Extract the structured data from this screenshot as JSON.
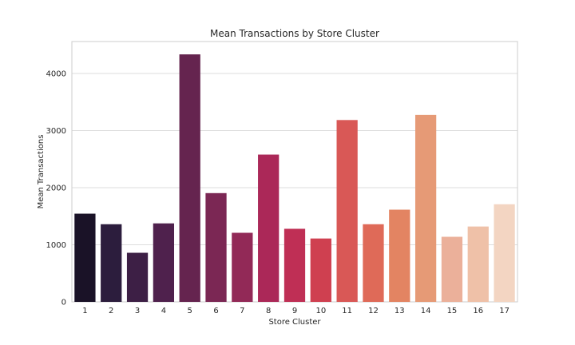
{
  "chart_data": {
    "type": "bar",
    "title": "Mean Transactions by Store Cluster",
    "xlabel": "Store Cluster",
    "ylabel": "Mean Transactions",
    "categories": [
      "1",
      "2",
      "3",
      "4",
      "5",
      "6",
      "7",
      "8",
      "9",
      "10",
      "11",
      "12",
      "13",
      "14",
      "15",
      "16",
      "17"
    ],
    "values": [
      1545,
      1360,
      860,
      1375,
      4335,
      1905,
      1210,
      2580,
      1280,
      1110,
      3185,
      1360,
      1615,
      3275,
      1140,
      1320,
      1710
    ],
    "colors": [
      "#1a1227",
      "#2c1d3d",
      "#3d1f45",
      "#4f214d",
      "#65244f",
      "#7b2754",
      "#922957",
      "#ab2858",
      "#bf2f55",
      "#cf4050",
      "#d95856",
      "#df6a58",
      "#e38462",
      "#e69a76",
      "#ebb09a",
      "#efc1a8",
      "#f3d5c2"
    ],
    "ylim": [
      0,
      4560
    ],
    "yticks": [
      0,
      1000,
      2000,
      3000,
      4000
    ],
    "grid": true,
    "legend": "none"
  }
}
